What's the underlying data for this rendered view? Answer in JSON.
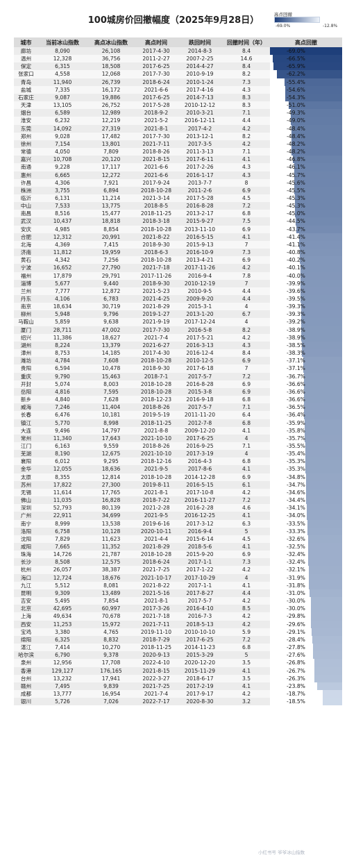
{
  "title": "100城房价回撤幅度（2025年9月28日）",
  "legend": {
    "label": "高点回撤",
    "min": "-69.0%",
    "max": "-12.8%",
    "color_dark": "#1e3f7a",
    "color_light": "#eef3fa"
  },
  "headers": [
    "城市",
    "当前冰山指数",
    "高点冰山指数",
    "高点时间",
    "跌回时间",
    "回撤时间（年）",
    "高点回撤"
  ],
  "rows": [
    [
      "廊坊",
      "8,090",
      "26,108",
      "2017-4-30",
      "2014-8-3",
      "8.4",
      "-69.0%"
    ],
    [
      "温州",
      "12,328",
      "36,756",
      "2011-2-27",
      "2007-2-25",
      "14.6",
      "-66.5%"
    ],
    [
      "保定",
      "6,315",
      "18,508",
      "2017-6-25",
      "2014-4-27",
      "8.4",
      "-65.9%"
    ],
    [
      "张家口",
      "4,558",
      "12,068",
      "2017-7-30",
      "2010-9-19",
      "8.2",
      "-62.2%"
    ],
    [
      "青岛",
      "11,940",
      "26,739",
      "2018-6-24",
      "2010-1-24",
      "7.3",
      "-55.4%"
    ],
    [
      "盐城",
      "7,335",
      "16,172",
      "2021-6-6",
      "2017-4-16",
      "4.3",
      "-54.6%"
    ],
    [
      "石家庄",
      "9,087",
      "19,886",
      "2017-6-25",
      "2014-7-13",
      "8.3",
      "-54.3%"
    ],
    [
      "天津",
      "13,105",
      "26,752",
      "2017-5-28",
      "2010-12-12",
      "8.3",
      "-51.0%"
    ],
    [
      "烟台",
      "6,589",
      "12,989",
      "2018-9-2",
      "2010-3-21",
      "7.1",
      "-49.3%"
    ],
    [
      "淮安",
      "6,232",
      "12,219",
      "2021-5-2",
      "2016-12-11",
      "4.4",
      "-49.0%"
    ],
    [
      "东莞",
      "14,092",
      "27,319",
      "2021-8-1",
      "2017-4-2",
      "4.2",
      "-48.4%"
    ],
    [
      "郑州",
      "9,028",
      "17,482",
      "2017-7-30",
      "2013-12-1",
      "8.2",
      "-48.4%"
    ],
    [
      "徐州",
      "7,154",
      "13,801",
      "2021-7-11",
      "2017-3-5",
      "4.2",
      "-48.2%"
    ],
    [
      "常德",
      "4,050",
      "7,809",
      "2018-8-26",
      "2011-3-13",
      "7.1",
      "-48.2%"
    ],
    [
      "嘉兴",
      "10,708",
      "20,120",
      "2021-8-15",
      "2017-6-11",
      "4.1",
      "-46.8%"
    ],
    [
      "南通",
      "9,228",
      "17,117",
      "2021-6-6",
      "2017-2-26",
      "4.3",
      "-46.1%"
    ],
    [
      "惠州",
      "6,665",
      "12,272",
      "2021-6-6",
      "2016-1-17",
      "4.3",
      "-45.7%"
    ],
    [
      "许昌",
      "4,306",
      "7,921",
      "2017-9-24",
      "2013-7-7",
      "8",
      "-45.6%"
    ],
    [
      "株洲",
      "3,755",
      "6,894",
      "2018-10-28",
      "2011-2-6",
      "6.9",
      "-45.5%"
    ],
    [
      "临沂",
      "6,131",
      "11,214",
      "2021-3-14",
      "2017-5-28",
      "4.5",
      "-45.3%"
    ],
    [
      "中山",
      "7,533",
      "13,775",
      "2018-8-5",
      "2016-8-28",
      "7.2",
      "-45.3%"
    ],
    [
      "南昌",
      "8,516",
      "15,477",
      "2018-11-25",
      "2013-2-17",
      "6.8",
      "-45.0%"
    ],
    [
      "武汉",
      "10,437",
      "18,818",
      "2018-3-18",
      "2015-9-27",
      "7.5",
      "-44.5%"
    ],
    [
      "安庆",
      "4,985",
      "8,854",
      "2018-10-28",
      "2013-11-10",
      "6.9",
      "-43.7%"
    ],
    [
      "合肥",
      "12,312",
      "20,991",
      "2021-8-22",
      "2016-5-15",
      "4.1",
      "-41.4%"
    ],
    [
      "北海",
      "4,369",
      "7,415",
      "2018-9-30",
      "2015-9-13",
      "7",
      "-41.1%"
    ],
    [
      "济南",
      "11,812",
      "19,959",
      "2018-6-3",
      "2016-10-9",
      "7.3",
      "-40.8%"
    ],
    [
      "黄石",
      "4,342",
      "7,256",
      "2018-10-28",
      "2013-4-21",
      "6.9",
      "-40.2%"
    ],
    [
      "宁波",
      "16,652",
      "27,790",
      "2021-7-18",
      "2017-11-26",
      "4.2",
      "-40.1%"
    ],
    [
      "福州",
      "17,879",
      "29,791",
      "2017-11-26",
      "2016-9-4",
      "7.8",
      "-40.0%"
    ],
    [
      "淄博",
      "5,677",
      "9,440",
      "2018-9-30",
      "2010-12-19",
      "7",
      "-39.9%"
    ],
    [
      "兰州",
      "7,777",
      "12,872",
      "2021-5-23",
      "2010-9-5",
      "4.4",
      "-39.6%"
    ],
    [
      "丹东",
      "4,106",
      "6,783",
      "2021-4-25",
      "2009-9-20",
      "4.4",
      "-39.5%"
    ],
    [
      "南京",
      "18,634",
      "30,719",
      "2021-8-29",
      "2015-3-1",
      "4",
      "-39.3%"
    ],
    [
      "柳州",
      "5,948",
      "9,796",
      "2019-1-27",
      "2013-1-20",
      "6.7",
      "-39.3%"
    ],
    [
      "马鞍山",
      "5,859",
      "9,638",
      "2021-9-19",
      "2017-12-24",
      "4",
      "-39.2%"
    ],
    [
      "厦门",
      "28,711",
      "47,002",
      "2017-7-30",
      "2016-5-8",
      "8.2",
      "-38.9%"
    ],
    [
      "绍兴",
      "11,386",
      "18,627",
      "2021-7-4",
      "2017-5-21",
      "4.2",
      "-38.9%"
    ],
    [
      "湖州",
      "8,224",
      "13,379",
      "2021-6-27",
      "2016-3-13",
      "4.3",
      "-38.5%"
    ],
    [
      "漳州",
      "8,753",
      "14,185",
      "2017-4-30",
      "2016-12-4",
      "8.4",
      "-38.3%"
    ],
    [
      "潍坊",
      "4,784",
      "7,608",
      "2018-10-28",
      "2010-12-5",
      "6.9",
      "-37.1%"
    ],
    [
      "贵阳",
      "6,594",
      "10,478",
      "2018-9-30",
      "2017-6-18",
      "7",
      "-37.1%"
    ],
    [
      "重庆",
      "9,790",
      "15,463",
      "2018-7-1",
      "2017-5-7",
      "7.2",
      "-36.7%"
    ],
    [
      "开封",
      "5,074",
      "8,003",
      "2018-10-28",
      "2016-8-28",
      "6.9",
      "-36.6%"
    ],
    [
      "岳阳",
      "4,816",
      "7,595",
      "2018-10-28",
      "2015-3-8",
      "6.9",
      "-36.6%"
    ],
    [
      "新乡",
      "4,840",
      "7,628",
      "2018-12-23",
      "2016-9-18",
      "6.8",
      "-36.6%"
    ],
    [
      "威海",
      "7,246",
      "11,404",
      "2018-8-26",
      "2017-5-7",
      "7.1",
      "-36.5%"
    ],
    [
      "长春",
      "6,476",
      "10,181",
      "2019-5-19",
      "2011-11-20",
      "6.4",
      "-36.4%"
    ],
    [
      "镇江",
      "5,770",
      "8,998",
      "2018-11-25",
      "2012-7-8",
      "6.8",
      "-35.9%"
    ],
    [
      "大连",
      "9,496",
      "14,797",
      "2021-8-8",
      "2009-12-20",
      "4.1",
      "-35.8%"
    ],
    [
      "常州",
      "11,340",
      "17,643",
      "2021-10-10",
      "2017-6-25",
      "4",
      "-35.7%"
    ],
    [
      "江门",
      "6,163",
      "9,559",
      "2018-8-26",
      "2016-9-25",
      "7.1",
      "-35.5%"
    ],
    [
      "芜湖",
      "8,190",
      "12,675",
      "2021-10-10",
      "2017-3-19",
      "4",
      "-35.4%"
    ],
    [
      "襄阳",
      "6,012",
      "9,295",
      "2018-12-16",
      "2016-4-3",
      "6.8",
      "-35.3%"
    ],
    [
      "金华",
      "12,055",
      "18,636",
      "2021-9-5",
      "2017-8-6",
      "4.1",
      "-35.3%"
    ],
    [
      "太原",
      "8,355",
      "12,814",
      "2018-10-28",
      "2014-12-28",
      "6.9",
      "-34.8%"
    ],
    [
      "苏州",
      "17,822",
      "27,300",
      "2019-8-11",
      "2016-5-15",
      "6.1",
      "-34.7%"
    ],
    [
      "无锡",
      "11,614",
      "17,765",
      "2021-8-1",
      "2017-10-8",
      "4.2",
      "-34.6%"
    ],
    [
      "佛山",
      "11,035",
      "16,828",
      "2018-7-22",
      "2016-11-27",
      "7.2",
      "-34.4%"
    ],
    [
      "深圳",
      "52,793",
      "80,139",
      "2021-2-28",
      "2016-2-28",
      "4.6",
      "-34.1%"
    ],
    [
      "广州",
      "22,911",
      "34,699",
      "2021-9-5",
      "2016-12-25",
      "4.1",
      "-34.0%"
    ],
    [
      "南宁",
      "8,999",
      "13,538",
      "2019-6-16",
      "2017-3-12",
      "6.3",
      "-33.5%"
    ],
    [
      "洛阳",
      "6,758",
      "10,128",
      "2020-10-11",
      "2016-9-4",
      "5",
      "-33.3%"
    ],
    [
      "沈阳",
      "7,829",
      "11,623",
      "2021-4-4",
      "2015-6-14",
      "4.5",
      "-32.6%"
    ],
    [
      "咸阳",
      "7,665",
      "11,352",
      "2021-8-29",
      "2018-5-6",
      "4.1",
      "-32.5%"
    ],
    [
      "珠海",
      "14,726",
      "21,787",
      "2018-10-28",
      "2015-9-20",
      "6.9",
      "-32.4%"
    ],
    [
      "长沙",
      "8,508",
      "12,575",
      "2018-6-24",
      "2017-1-1",
      "7.3",
      "-32.4%"
    ],
    [
      "杭州",
      "26,057",
      "38,387",
      "2021-7-25",
      "2017-1-22",
      "4.2",
      "-32.1%"
    ],
    [
      "海口",
      "12,724",
      "18,676",
      "2021-10-17",
      "2017-10-29",
      "4",
      "-31.9%"
    ],
    [
      "九江",
      "5,512",
      "8,081",
      "2021-8-22",
      "2017-1-1",
      "4.1",
      "-31.8%"
    ],
    [
      "昆明",
      "9,309",
      "13,489",
      "2021-5-16",
      "2017-8-27",
      "4.4",
      "-31.0%"
    ],
    [
      "吉安",
      "5,495",
      "7,854",
      "2021-8-1",
      "2017-5-7",
      "4.2",
      "-30.0%"
    ],
    [
      "北京",
      "42,695",
      "60,997",
      "2017-3-26",
      "2016-4-10",
      "8.5",
      "-30.0%"
    ],
    [
      "上海",
      "49,634",
      "70,678",
      "2021-7-18",
      "2016-7-3",
      "4.2",
      "-29.8%"
    ],
    [
      "西安",
      "11,253",
      "15,972",
      "2021-7-11",
      "2018-5-13",
      "4.2",
      "-29.6%"
    ],
    [
      "宝鸡",
      "3,380",
      "4,765",
      "2019-11-10",
      "2010-10-10",
      "5.9",
      "-29.1%"
    ],
    [
      "绵阳",
      "6,325",
      "8,832",
      "2018-7-29",
      "2017-6-25",
      "7.2",
      "-28.4%"
    ],
    [
      "湛江",
      "7,414",
      "10,270",
      "2018-11-25",
      "2014-11-23",
      "6.8",
      "-27.8%"
    ],
    [
      "哈尔滨",
      "6,790",
      "9,378",
      "2020-9-13",
      "2015-3-29",
      "5",
      "-27.6%"
    ],
    [
      "泉州",
      "12,956",
      "17,708",
      "2022-4-10",
      "2020-12-20",
      "3.5",
      "-26.8%"
    ],
    [
      "香港",
      "129,127",
      "176,165",
      "2021-8-15",
      "2015-11-29",
      "4.1",
      "-26.7%"
    ],
    [
      "台州",
      "13,232",
      "17,941",
      "2022-3-27",
      "2018-6-17",
      "3.5",
      "-26.3%"
    ],
    [
      "赣州",
      "7,495",
      "9,839",
      "2021-7-25",
      "2017-2-19",
      "4.1",
      "-23.8%"
    ],
    [
      "成都",
      "13,777",
      "16,954",
      "2021-7-4",
      "2017-9-17",
      "4.2",
      "-18.7%"
    ],
    [
      "银川",
      "5,726",
      "7,026",
      "2022-7-17",
      "2020-8-30",
      "3.2",
      "-18.5%"
    ]
  ],
  "watermark": "小红书号 爷爷冰山指数"
}
